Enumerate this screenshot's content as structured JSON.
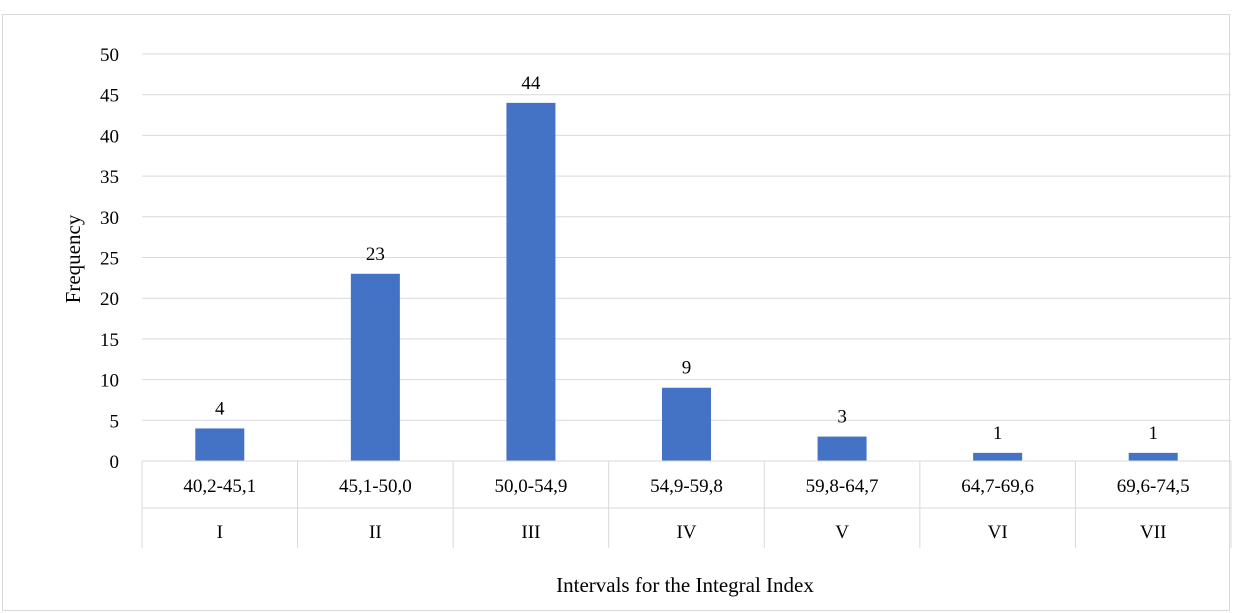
{
  "chart_data": {
    "type": "bar",
    "title": "",
    "xlabel": "Intervals for the Integral Index",
    "ylabel": "Frequency",
    "ylim": [
      0,
      50
    ],
    "ytick_step": 5,
    "grid": true,
    "legend": "none",
    "bar_color": "#4472c4",
    "categories": [
      "40,2-45,1",
      "45,1-50,0",
      "50,0-54,9",
      "54,9-59,8",
      "59,8-64,7",
      "64,7-69,6",
      "69,6-74,5"
    ],
    "group_labels": [
      "I",
      "II",
      "III",
      "IV",
      "V",
      "VI",
      "VII"
    ],
    "values": [
      4,
      23,
      44,
      9,
      3,
      1,
      1
    ],
    "data_labels": [
      "4",
      "23",
      "44",
      "9",
      "3",
      "1",
      "1"
    ]
  }
}
